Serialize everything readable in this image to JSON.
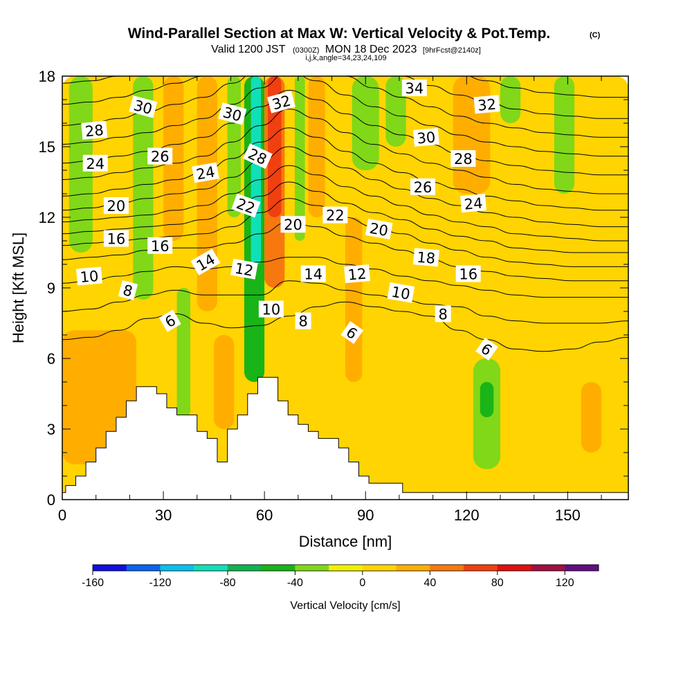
{
  "chart_data": {
    "type": "heatmap",
    "title": "Wind-Parallel Section at Max W: Vertical Velocity & Pot.Temp.",
    "title_mark": "(C)",
    "subtitle": {
      "valid_prefix": "Valid 1200 JST",
      "utc": "(0300Z)",
      "date": "MON 18 Dec 2023",
      "forecast": "[9hrFcst@2140z]"
    },
    "index_line": "i,j,k,angle=34,23,24,109",
    "xlabel": "Distance [nm]",
    "ylabel": "Height [Kft MSL]",
    "xlim": [
      0,
      168
    ],
    "ylim": [
      0,
      18
    ],
    "x_ticks": [
      0,
      30,
      60,
      90,
      120,
      150
    ],
    "y_ticks": [
      0,
      3,
      6,
      9,
      12,
      15,
      18
    ],
    "grid": false,
    "colorbar": {
      "title": "Vertical Velocity [cm/s]",
      "tick_labels": [
        "-160",
        "-120",
        "-80",
        "-40",
        "0",
        "40",
        "80",
        "120"
      ],
      "tick_values": [
        -160,
        -120,
        -80,
        -40,
        0,
        40,
        80,
        120
      ],
      "min": -160,
      "max": 140,
      "step": 20,
      "colors": [
        "#1010e0",
        "#0a64f0",
        "#08c0f0",
        "#10e0b8",
        "#10b450",
        "#18b418",
        "#80d818",
        "#f0f000",
        "#ffd400",
        "#ffae00",
        "#f87810",
        "#f04010",
        "#e01010",
        "#a01040",
        "#601080"
      ]
    },
    "velocity_bands": [
      {
        "x": 0,
        "x_end": 168,
        "y_bottom": 0,
        "y_top": 18,
        "value": 10
      },
      {
        "x": 0,
        "x_end": 168,
        "y_bottom": 0,
        "y_top": 7.5,
        "value": 0
      },
      {
        "x": 0,
        "x_end": 22,
        "y_bottom": 1.5,
        "y_top": 7.2,
        "value": 20
      },
      {
        "x": 2,
        "x_end": 9,
        "y_bottom": 10.5,
        "y_top": 18,
        "value": -30
      },
      {
        "x": 21,
        "x_end": 27,
        "y_bottom": 8.5,
        "y_top": 18,
        "value": -30
      },
      {
        "x": 30,
        "x_end": 36,
        "y_bottom": 11,
        "y_top": 18,
        "value": 30
      },
      {
        "x": 34,
        "x_end": 38,
        "y_bottom": 3.5,
        "y_top": 9,
        "value": -30
      },
      {
        "x": 40,
        "x_end": 46,
        "y_bottom": 8,
        "y_top": 18,
        "value": 30
      },
      {
        "x": 45,
        "x_end": 51,
        "y_bottom": 3,
        "y_top": 7,
        "value": 30
      },
      {
        "x": 49,
        "x_end": 53,
        "y_bottom": 12,
        "y_top": 18,
        "value": -30
      },
      {
        "x": 54,
        "x_end": 60,
        "y_bottom": 5,
        "y_top": 18,
        "value": -50
      },
      {
        "x": 56,
        "x_end": 59,
        "y_bottom": 10,
        "y_top": 18,
        "value": -90
      },
      {
        "x": 60,
        "x_end": 66,
        "y_bottom": 9,
        "y_top": 18,
        "value": 50
      },
      {
        "x": 61,
        "x_end": 65,
        "y_bottom": 12,
        "y_top": 18,
        "value": 70
      },
      {
        "x": 69,
        "x_end": 72,
        "y_bottom": 11,
        "y_top": 18,
        "value": -30
      },
      {
        "x": 73,
        "x_end": 78,
        "y_bottom": 12,
        "y_top": 18,
        "value": 30
      },
      {
        "x": 84,
        "x_end": 89,
        "y_bottom": 5,
        "y_top": 12,
        "value": 30
      },
      {
        "x": 86,
        "x_end": 94,
        "y_bottom": 14,
        "y_top": 18,
        "value": -30
      },
      {
        "x": 96,
        "x_end": 102,
        "y_bottom": 15,
        "y_top": 18,
        "value": -30
      },
      {
        "x": 116,
        "x_end": 127,
        "y_bottom": 13,
        "y_top": 18,
        "value": 30
      },
      {
        "x": 117,
        "x_end": 124,
        "y_bottom": 3,
        "y_top": 7,
        "value": 10
      },
      {
        "x": 122,
        "x_end": 130,
        "y_bottom": 1.3,
        "y_top": 6,
        "value": -30
      },
      {
        "x": 124,
        "x_end": 128,
        "y_bottom": 3.5,
        "y_top": 5,
        "value": -50
      },
      {
        "x": 130,
        "x_end": 136,
        "y_bottom": 16,
        "y_top": 18,
        "value": -30
      },
      {
        "x": 146,
        "x_end": 152,
        "y_bottom": 13,
        "y_top": 18,
        "value": -30
      },
      {
        "x": 154,
        "x_end": 160,
        "y_bottom": 2,
        "y_top": 5,
        "value": 30
      }
    ],
    "terrain_heights": [
      0.3,
      0.6,
      0.6,
      0.6,
      1.0,
      1.0,
      1.0,
      1.6,
      1.6,
      1.6,
      2.2,
      2.2,
      2.2,
      2.9,
      2.9,
      2.9,
      3.5,
      3.5,
      3.5,
      4.2,
      4.2,
      4.2,
      4.8,
      4.8,
      4.8,
      4.8,
      4.8,
      4.8,
      4.5,
      4.5,
      4.5,
      3.9,
      3.9,
      3.9,
      3.6,
      3.6,
      3.6,
      3.6,
      3.6,
      3.6,
      2.9,
      2.9,
      2.9,
      2.6,
      2.6,
      2.6,
      1.6,
      1.6,
      1.6,
      3.0,
      3.0,
      3.0,
      3.6,
      3.6,
      3.6,
      4.5,
      4.5,
      4.5,
      5.2,
      5.2,
      5.2,
      5.2,
      5.2,
      5.2,
      4.2,
      4.2,
      4.2,
      3.6,
      3.6,
      3.6,
      3.2,
      3.2,
      3.2,
      2.9,
      2.9,
      2.9,
      2.6,
      2.6,
      2.6,
      2.6,
      2.6,
      2.6,
      2.2,
      2.2,
      2.2,
      1.6,
      1.6,
      1.6,
      1.0,
      1.0,
      1.0,
      0.7,
      0.7,
      0.7,
      0.7,
      0.7,
      0.7,
      0.7,
      0.7,
      0.7,
      0.7,
      0.3,
      0.3,
      0.3,
      0.3,
      0.3,
      0.3,
      0.3,
      0.3,
      0.3,
      0.3,
      0.3,
      0.3,
      0.3,
      0.3,
      0.3,
      0.3,
      0.3,
      0.3,
      0.3,
      0.3,
      0.3,
      0.3,
      0.3,
      0.3,
      0.3,
      0.3,
      0.3,
      0.3,
      0.3,
      0.3,
      0.3,
      0.3,
      0.3,
      0.3,
      0.3,
      0.3,
      0.3,
      0.3,
      0.3,
      0.3,
      0.3,
      0.3,
      0.3,
      0.3,
      0.3,
      0.3,
      0.3,
      0.3,
      0.3,
      0.3,
      0.3,
      0.3,
      0.3,
      0.3,
      0.3,
      0.3,
      0.3,
      0.3,
      0.3,
      0.3,
      0.3,
      0.3,
      0.3,
      0.3,
      0.3,
      0.3,
      0.3
    ],
    "contour_theta": [
      {
        "level": 6,
        "heights": [
          6.8,
          6.9,
          7.2,
          7.7,
          7.9,
          7.5,
          7.3,
          7.4,
          7.8,
          8.2,
          8.4,
          8.2,
          8.0,
          7.8,
          7.2,
          6.8,
          6.4,
          6.3,
          6.4,
          6.7,
          6.9
        ]
      },
      {
        "level": 8,
        "heights": [
          8.0,
          8.1,
          8.4,
          8.7,
          8.9,
          8.7,
          8.7,
          8.7,
          9.3,
          9.2,
          8.9,
          8.7,
          8.5,
          8.3,
          8.2,
          7.8,
          7.6,
          7.5,
          7.5,
          7.5,
          7.6
        ]
      },
      {
        "level": 10,
        "heights": [
          9.2,
          9.3,
          9.5,
          9.7,
          9.9,
          9.8,
          9.9,
          10.1,
          10.3,
          10.3,
          10.0,
          9.8,
          9.5,
          9.3,
          9.1,
          8.9,
          8.7,
          8.6,
          8.6,
          8.6,
          8.6
        ]
      },
      {
        "level": 12,
        "heights": [
          10.2,
          10.3,
          10.4,
          10.6,
          10.7,
          10.7,
          10.9,
          11.3,
          11.8,
          11.6,
          11.2,
          10.9,
          10.6,
          10.2,
          9.9,
          9.7,
          9.5,
          9.4,
          9.3,
          9.3,
          9.3
        ]
      },
      {
        "level": 14,
        "heights": [
          10.8,
          10.9,
          11.0,
          11.1,
          11.2,
          11.3,
          11.6,
          12.2,
          12.8,
          12.5,
          12.0,
          11.6,
          11.3,
          10.9,
          10.6,
          10.3,
          10.1,
          10.0,
          9.9,
          9.9,
          9.9
        ]
      },
      {
        "level": 16,
        "heights": [
          11.3,
          11.4,
          11.5,
          11.6,
          11.7,
          11.9,
          12.3,
          12.9,
          13.5,
          13.1,
          12.6,
          12.2,
          11.9,
          11.5,
          11.2,
          11.0,
          10.7,
          10.6,
          10.5,
          10.5,
          10.5
        ]
      },
      {
        "level": 18,
        "heights": [
          11.8,
          11.9,
          12.0,
          12.1,
          12.3,
          12.5,
          13.0,
          13.6,
          14.2,
          13.8,
          13.3,
          12.9,
          12.5,
          12.1,
          11.8,
          11.6,
          11.3,
          11.2,
          11.1,
          11.0,
          11.0
        ]
      },
      {
        "level": 20,
        "heights": [
          12.3,
          12.4,
          12.6,
          12.8,
          13.0,
          13.2,
          13.7,
          14.4,
          15.0,
          14.6,
          14.1,
          13.6,
          13.2,
          12.8,
          12.5,
          12.2,
          12.0,
          11.8,
          11.7,
          11.6,
          11.6
        ]
      },
      {
        "level": 22,
        "heights": [
          12.9,
          13.0,
          13.2,
          13.4,
          13.6,
          13.9,
          14.5,
          15.2,
          15.8,
          15.4,
          14.8,
          14.3,
          13.9,
          13.5,
          13.2,
          12.9,
          12.7,
          12.5,
          12.4,
          12.3,
          12.3
        ]
      },
      {
        "level": 24,
        "heights": [
          13.6,
          13.7,
          13.9,
          14.1,
          14.3,
          14.6,
          15.2,
          15.9,
          16.6,
          16.2,
          15.6,
          15.1,
          14.7,
          14.3,
          14.0,
          13.7,
          13.4,
          13.2,
          13.1,
          13.0,
          13.0
        ]
      },
      {
        "level": 26,
        "heights": [
          14.3,
          14.4,
          14.6,
          14.8,
          15.1,
          15.4,
          16.0,
          16.7,
          17.4,
          17.0,
          16.4,
          15.9,
          15.5,
          15.1,
          14.7,
          14.4,
          14.2,
          14.0,
          13.9,
          13.8,
          13.8
        ]
      },
      {
        "level": 28,
        "heights": [
          15.1,
          15.2,
          15.4,
          15.6,
          15.9,
          16.2,
          16.8,
          17.5,
          18.2,
          17.8,
          17.2,
          16.7,
          16.3,
          15.9,
          15.5,
          15.2,
          15.0,
          14.8,
          14.7,
          14.6,
          14.6
        ]
      },
      {
        "level": 30,
        "heights": [
          15.9,
          16.0,
          16.2,
          16.5,
          16.8,
          17.1,
          17.7,
          18.4,
          19.1,
          18.7,
          18.0,
          17.5,
          17.1,
          16.7,
          16.3,
          16.0,
          15.8,
          15.6,
          15.5,
          15.4,
          15.4
        ]
      },
      {
        "level": 32,
        "heights": [
          16.8,
          16.9,
          17.1,
          17.4,
          17.7,
          18.0,
          18.6,
          19.3,
          20.0,
          19.6,
          18.9,
          18.4,
          18.0,
          17.6,
          17.2,
          16.9,
          16.6,
          16.4,
          16.3,
          16.2,
          16.2
        ]
      },
      {
        "level": 34,
        "heights": [
          17.7,
          17.8,
          18.0,
          18.3,
          18.6,
          18.9,
          19.5,
          20.2,
          20.9,
          20.5,
          19.8,
          19.3,
          18.9,
          18.5,
          18.1,
          17.8,
          17.5,
          17.3,
          17.2,
          17.1,
          17.1
        ]
      }
    ],
    "contour_labels": [
      {
        "text": "28",
        "x": 9.5,
        "y": 15.7,
        "angle": -5
      },
      {
        "text": "30",
        "x": 24,
        "y": 16.7,
        "angle": 15
      },
      {
        "text": "24",
        "x": 9.8,
        "y": 14.3,
        "angle": 0
      },
      {
        "text": "26",
        "x": 29,
        "y": 14.6,
        "angle": 0
      },
      {
        "text": "30",
        "x": 50.5,
        "y": 16.4,
        "angle": 15
      },
      {
        "text": "32",
        "x": 65,
        "y": 16.9,
        "angle": -15
      },
      {
        "text": "28",
        "x": 58,
        "y": 14.6,
        "angle": 25
      },
      {
        "text": "24",
        "x": 42.5,
        "y": 13.9,
        "angle": -10
      },
      {
        "text": "20",
        "x": 16,
        "y": 12.5,
        "angle": 0
      },
      {
        "text": "22",
        "x": 54.5,
        "y": 12.5,
        "angle": 20
      },
      {
        "text": "20",
        "x": 68.5,
        "y": 11.7,
        "angle": 0
      },
      {
        "text": "22",
        "x": 81,
        "y": 12.1,
        "angle": 0
      },
      {
        "text": "20",
        "x": 94,
        "y": 11.5,
        "angle": 10
      },
      {
        "text": "16",
        "x": 16,
        "y": 11.1,
        "angle": 0
      },
      {
        "text": "16",
        "x": 29,
        "y": 10.8,
        "angle": 0
      },
      {
        "text": "14",
        "x": 42.5,
        "y": 10.1,
        "angle": -30
      },
      {
        "text": "12",
        "x": 54,
        "y": 9.8,
        "angle": 10
      },
      {
        "text": "14",
        "x": 74.5,
        "y": 9.6,
        "angle": 0
      },
      {
        "text": "12",
        "x": 87.5,
        "y": 9.6,
        "angle": -5
      },
      {
        "text": "18",
        "x": 108,
        "y": 10.3,
        "angle": 5
      },
      {
        "text": "16",
        "x": 120.5,
        "y": 9.6,
        "angle": 0
      },
      {
        "text": "10",
        "x": 8,
        "y": 9.5,
        "angle": -5
      },
      {
        "text": "8",
        "x": 19.5,
        "y": 8.9,
        "angle": 15
      },
      {
        "text": "10",
        "x": 100.5,
        "y": 8.8,
        "angle": 10
      },
      {
        "text": "6",
        "x": 32,
        "y": 7.6,
        "angle": -30
      },
      {
        "text": "10",
        "x": 62,
        "y": 8.1,
        "angle": 0
      },
      {
        "text": "8",
        "x": 71.5,
        "y": 7.6,
        "angle": 0
      },
      {
        "text": "8",
        "x": 113,
        "y": 7.9,
        "angle": 0
      },
      {
        "text": "6",
        "x": 86,
        "y": 7.1,
        "angle": 35
      },
      {
        "text": "6",
        "x": 126,
        "y": 6.4,
        "angle": 35
      },
      {
        "text": "34",
        "x": 104.5,
        "y": 17.5,
        "angle": 0
      },
      {
        "text": "30",
        "x": 108,
        "y": 15.4,
        "angle": -5
      },
      {
        "text": "32",
        "x": 126,
        "y": 16.8,
        "angle": -5
      },
      {
        "text": "28",
        "x": 119,
        "y": 14.5,
        "angle": 0
      },
      {
        "text": "26",
        "x": 107,
        "y": 13.3,
        "angle": 0
      },
      {
        "text": "24",
        "x": 122,
        "y": 12.6,
        "angle": -5
      }
    ]
  }
}
